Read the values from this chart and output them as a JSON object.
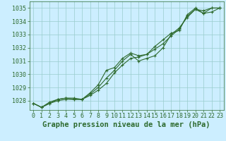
{
  "x": [
    0,
    1,
    2,
    3,
    4,
    5,
    6,
    7,
    8,
    9,
    10,
    11,
    12,
    13,
    14,
    15,
    16,
    17,
    18,
    19,
    20,
    21,
    22,
    23
  ],
  "series": [
    [
      1027.8,
      1027.5,
      1027.8,
      1028.1,
      1028.2,
      1028.1,
      1028.1,
      1028.6,
      1029.2,
      1030.3,
      1030.5,
      1031.2,
      1031.6,
      1031.4,
      1031.5,
      1032.1,
      1032.6,
      1033.1,
      1033.3,
      1034.5,
      1035.0,
      1034.6,
      1035.0,
      1035.0
    ],
    [
      1027.8,
      1027.5,
      1027.9,
      1028.1,
      1028.2,
      1028.2,
      1028.1,
      1028.5,
      1029.0,
      1029.7,
      1030.3,
      1031.0,
      1031.5,
      1031.0,
      1031.2,
      1031.4,
      1032.0,
      1033.0,
      1033.5,
      1034.3,
      1034.9,
      1034.6,
      1034.7,
      1035.0
    ],
    [
      1027.8,
      1027.5,
      1027.8,
      1028.0,
      1028.1,
      1028.1,
      1028.1,
      1028.4,
      1028.8,
      1029.3,
      1030.1,
      1030.7,
      1031.2,
      1031.3,
      1031.5,
      1031.9,
      1032.3,
      1032.9,
      1033.4,
      1034.4,
      1034.9,
      1034.8,
      1035.0,
      1035.0
    ]
  ],
  "line_color": "#2d6a2d",
  "marker_color": "#2d6a2d",
  "bg_color": "#cceeff",
  "grid_color": "#99cccc",
  "axis_color": "#2d6a2d",
  "xlabel": "Graphe pression niveau de la mer (hPa)",
  "ylim": [
    1027.3,
    1035.5
  ],
  "yticks": [
    1028,
    1029,
    1030,
    1031,
    1032,
    1033,
    1034,
    1035
  ],
  "xticks": [
    0,
    1,
    2,
    3,
    4,
    5,
    6,
    7,
    8,
    9,
    10,
    11,
    12,
    13,
    14,
    15,
    16,
    17,
    18,
    19,
    20,
    21,
    22,
    23
  ],
  "xlabel_fontsize": 7.5,
  "tick_fontsize": 6,
  "line_width": 0.8,
  "marker_size": 2.5
}
